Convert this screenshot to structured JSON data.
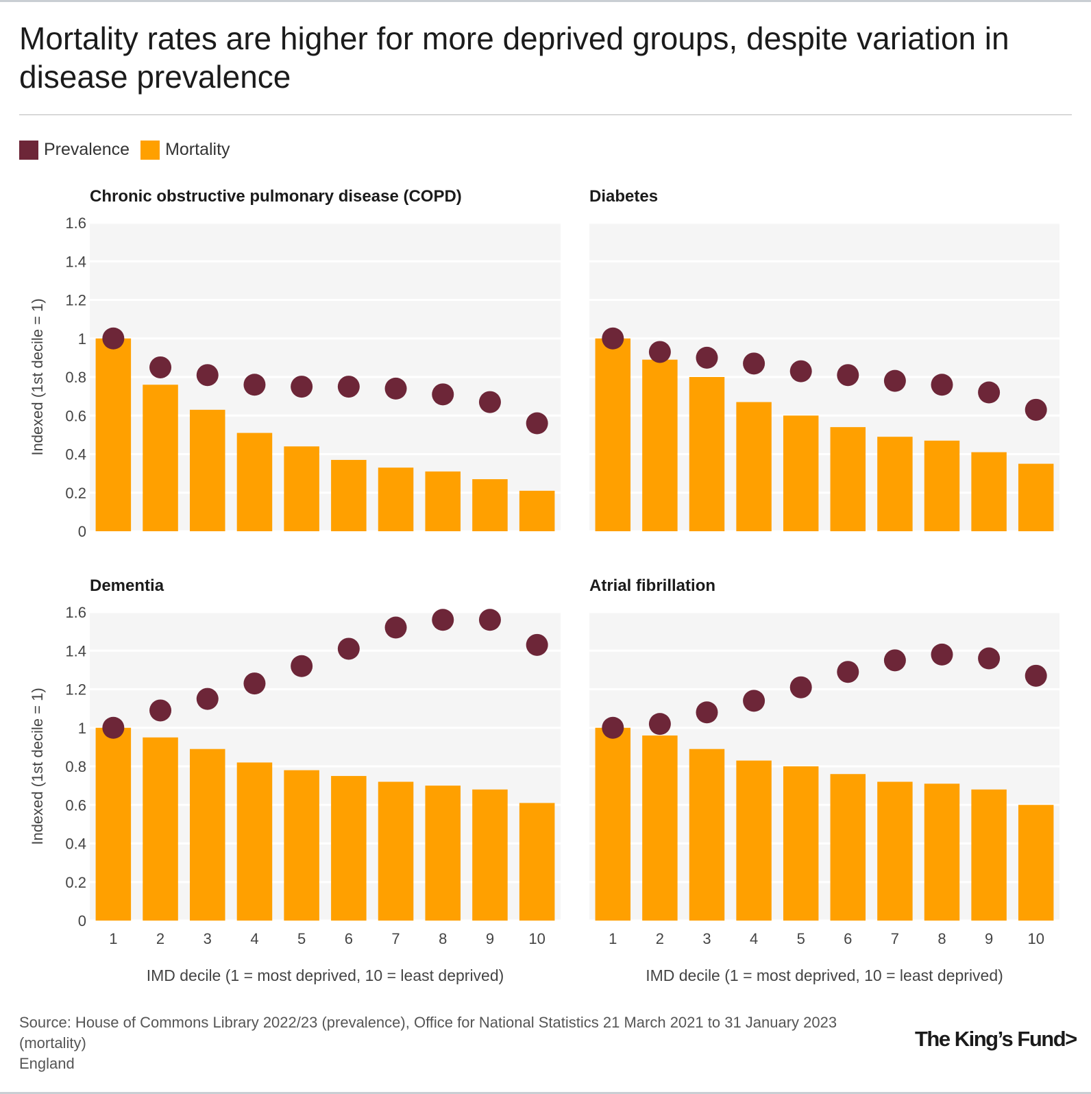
{
  "title": "Mortality rates are higher for more deprived groups, despite variation in disease prevalence",
  "legend": [
    {
      "label": "Prevalence",
      "color": "#6d2638"
    },
    {
      "label": "Mortality",
      "color": "#ffa000"
    }
  ],
  "colors": {
    "prevalence": "#6d2638",
    "mortality": "#ffa000",
    "panel_bg": "#f5f5f5",
    "gridline": "#ffffff"
  },
  "chart_data": [
    {
      "type": "bar",
      "title": "Chronic obstructive pulmonary disease (COPD)",
      "categories": [
        "1",
        "2",
        "3",
        "4",
        "5",
        "6",
        "7",
        "8",
        "9",
        "10"
      ],
      "series": [
        {
          "name": "Mortality",
          "kind": "bar",
          "values": [
            1.0,
            0.76,
            0.63,
            0.51,
            0.44,
            0.37,
            0.33,
            0.31,
            0.27,
            0.21
          ]
        },
        {
          "name": "Prevalence",
          "kind": "dot",
          "values": [
            1.0,
            0.85,
            0.81,
            0.76,
            0.75,
            0.75,
            0.74,
            0.71,
            0.67,
            0.56
          ]
        }
      ],
      "xlabel": "",
      "ylabel": "Indexed (1st decile = 1)",
      "ylim": [
        0,
        1.6
      ],
      "yticks": [
        "0",
        "0.2",
        "0.4",
        "0.6",
        "0.8",
        "1",
        "1.2",
        "1.4",
        "1.6"
      ]
    },
    {
      "type": "bar",
      "title": "Diabetes",
      "categories": [
        "1",
        "2",
        "3",
        "4",
        "5",
        "6",
        "7",
        "8",
        "9",
        "10"
      ],
      "series": [
        {
          "name": "Mortality",
          "kind": "bar",
          "values": [
            1.0,
            0.89,
            0.8,
            0.67,
            0.6,
            0.54,
            0.49,
            0.47,
            0.41,
            0.35
          ]
        },
        {
          "name": "Prevalence",
          "kind": "dot",
          "values": [
            1.0,
            0.93,
            0.9,
            0.87,
            0.83,
            0.81,
            0.78,
            0.76,
            0.72,
            0.63
          ]
        }
      ],
      "xlabel": "",
      "ylabel": "",
      "ylim": [
        0,
        1.6
      ]
    },
    {
      "type": "bar",
      "title": "Dementia",
      "categories": [
        "1",
        "2",
        "3",
        "4",
        "5",
        "6",
        "7",
        "8",
        "9",
        "10"
      ],
      "series": [
        {
          "name": "Mortality",
          "kind": "bar",
          "values": [
            1.0,
            0.95,
            0.89,
            0.82,
            0.78,
            0.75,
            0.72,
            0.7,
            0.68,
            0.61
          ]
        },
        {
          "name": "Prevalence",
          "kind": "dot",
          "values": [
            1.0,
            1.09,
            1.15,
            1.23,
            1.32,
            1.41,
            1.52,
            1.56,
            1.56,
            1.43
          ]
        }
      ],
      "xlabel": "IMD decile (1 = most deprived, 10 = least deprived)",
      "ylabel": "Indexed (1st decile = 1)",
      "ylim": [
        0,
        1.6
      ],
      "yticks": [
        "0",
        "0.2",
        "0.4",
        "0.6",
        "0.8",
        "1",
        "1.2",
        "1.4",
        "1.6"
      ]
    },
    {
      "type": "bar",
      "title": "Atrial fibrillation",
      "categories": [
        "1",
        "2",
        "3",
        "4",
        "5",
        "6",
        "7",
        "8",
        "9",
        "10"
      ],
      "series": [
        {
          "name": "Mortality",
          "kind": "bar",
          "values": [
            1.0,
            0.96,
            0.89,
            0.83,
            0.8,
            0.76,
            0.72,
            0.71,
            0.68,
            0.6
          ]
        },
        {
          "name": "Prevalence",
          "kind": "dot",
          "values": [
            1.0,
            1.02,
            1.08,
            1.14,
            1.21,
            1.29,
            1.35,
            1.38,
            1.36,
            1.27
          ]
        }
      ],
      "xlabel": "IMD decile (1 = most deprived, 10 = least deprived)",
      "ylabel": "",
      "ylim": [
        0,
        1.6
      ]
    }
  ],
  "source": {
    "line1": "Source: House of Commons Library 2022/23 (prevalence), Office for National Statistics 21 March 2021 to 31 January 2023",
    "line2": "(mortality)",
    "line3": "England"
  },
  "logo": "The King’s Fund>"
}
